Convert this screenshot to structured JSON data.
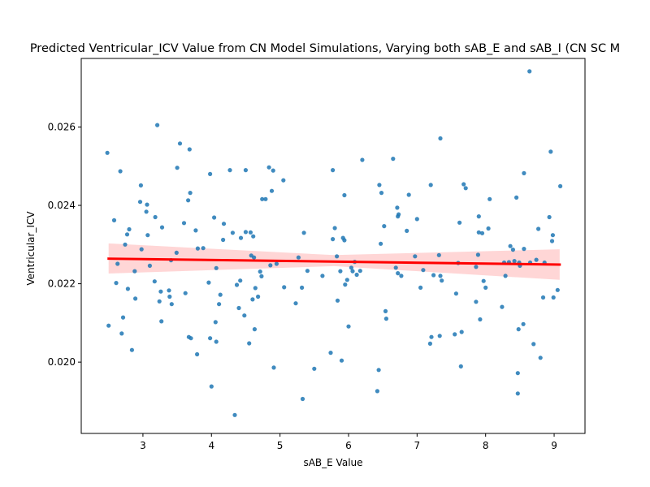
{
  "chart_data": {
    "type": "scatter",
    "title": "Predicted Ventricular_ICV Value from CN Model Simulations, Varying both sAB_E and sAB_I (CN SC M",
    "xlabel": "sAB_E Value",
    "ylabel": "Ventricular_ICV",
    "xlim": [
      2.1,
      9.45
    ],
    "ylim": [
      0.01818,
      0.02775
    ],
    "x_ticks": [
      3,
      4,
      5,
      6,
      7,
      8,
      9
    ],
    "x_tick_labels": [
      "3",
      "4",
      "5",
      "6",
      "7",
      "8",
      "9"
    ],
    "y_ticks": [
      0.02,
      0.022,
      0.024,
      0.026
    ],
    "y_tick_labels": [
      "0.020",
      "0.022",
      "0.024",
      "0.026"
    ],
    "grid": false,
    "legend": "none",
    "colors": {
      "points": "#1f77b4",
      "regression_line": "#ff0000",
      "confidence_band": "#ffcccc"
    },
    "regression": {
      "x": [
        2.5,
        9.08
      ],
      "y": [
        0.02264,
        0.02249
      ],
      "ci_lower": [
        0.02226,
        0.0221
      ],
      "ci_upper": [
        0.02303,
        0.02288
      ],
      "ci_mid_lower": 0.02245,
      "ci_mid_upper": 0.02273
    },
    "points": [
      [
        2.48,
        0.02534
      ],
      [
        2.5,
        0.02093
      ],
      [
        2.58,
        0.02362
      ],
      [
        2.61,
        0.02202
      ],
      [
        2.63,
        0.02251
      ],
      [
        2.67,
        0.02487
      ],
      [
        2.69,
        0.02073
      ],
      [
        2.71,
        0.02114
      ],
      [
        2.74,
        0.023
      ],
      [
        2.77,
        0.02326
      ],
      [
        2.78,
        0.02187
      ],
      [
        2.8,
        0.02339
      ],
      [
        2.84,
        0.02031
      ],
      [
        2.88,
        0.02232
      ],
      [
        2.89,
        0.02162
      ],
      [
        2.96,
        0.02409
      ],
      [
        2.97,
        0.02451
      ],
      [
        2.98,
        0.02288
      ],
      [
        3.05,
        0.02384
      ],
      [
        3.06,
        0.02402
      ],
      [
        3.07,
        0.02324
      ],
      [
        3.1,
        0.02246
      ],
      [
        3.17,
        0.02206
      ],
      [
        3.18,
        0.0237
      ],
      [
        3.21,
        0.02605
      ],
      [
        3.24,
        0.02155
      ],
      [
        3.26,
        0.0218
      ],
      [
        3.27,
        0.02104
      ],
      [
        3.28,
        0.02344
      ],
      [
        3.38,
        0.02183
      ],
      [
        3.39,
        0.02167
      ],
      [
        3.41,
        0.0226
      ],
      [
        3.42,
        0.02148
      ],
      [
        3.49,
        0.02279
      ],
      [
        3.5,
        0.02496
      ],
      [
        3.54,
        0.02558
      ],
      [
        3.6,
        0.02355
      ],
      [
        3.62,
        0.02176
      ],
      [
        3.66,
        0.02413
      ],
      [
        3.67,
        0.02064
      ],
      [
        3.68,
        0.02543
      ],
      [
        3.69,
        0.02432
      ],
      [
        3.7,
        0.02061
      ],
      [
        3.77,
        0.02336
      ],
      [
        3.79,
        0.0202
      ],
      [
        3.8,
        0.0229
      ],
      [
        3.88,
        0.02291
      ],
      [
        3.96,
        0.02203
      ],
      [
        3.98,
        0.0248
      ],
      [
        3.98,
        0.02061
      ],
      [
        4.0,
        0.01938
      ],
      [
        4.04,
        0.02369
      ],
      [
        4.06,
        0.02102
      ],
      [
        4.07,
        0.0224
      ],
      [
        4.07,
        0.02052
      ],
      [
        4.11,
        0.02148
      ],
      [
        4.13,
        0.02172
      ],
      [
        4.17,
        0.02312
      ],
      [
        4.18,
        0.02353
      ],
      [
        4.27,
        0.0249
      ],
      [
        4.31,
        0.0233
      ],
      [
        4.34,
        0.01865
      ],
      [
        4.37,
        0.02197
      ],
      [
        4.4,
        0.02138
      ],
      [
        4.42,
        0.02208
      ],
      [
        4.43,
        0.02317
      ],
      [
        4.48,
        0.02119
      ],
      [
        4.5,
        0.02332
      ],
      [
        4.5,
        0.0249
      ],
      [
        4.55,
        0.02048
      ],
      [
        4.57,
        0.02331
      ],
      [
        4.58,
        0.02272
      ],
      [
        4.6,
        0.0216
      ],
      [
        4.61,
        0.02321
      ],
      [
        4.62,
        0.02267
      ],
      [
        4.63,
        0.02084
      ],
      [
        4.64,
        0.02189
      ],
      [
        4.68,
        0.02167
      ],
      [
        4.71,
        0.02231
      ],
      [
        4.73,
        0.02219
      ],
      [
        4.74,
        0.02416
      ],
      [
        4.79,
        0.02416
      ],
      [
        4.84,
        0.02497
      ],
      [
        4.86,
        0.02247
      ],
      [
        4.88,
        0.02437
      ],
      [
        4.9,
        0.02489
      ],
      [
        4.91,
        0.01986
      ],
      [
        4.95,
        0.02251
      ],
      [
        5.05,
        0.02464
      ],
      [
        5.06,
        0.02191
      ],
      [
        5.23,
        0.0215
      ],
      [
        5.27,
        0.02267
      ],
      [
        5.32,
        0.0219
      ],
      [
        5.33,
        0.01906
      ],
      [
        5.35,
        0.0233
      ],
      [
        5.4,
        0.02233
      ],
      [
        5.5,
        0.01983
      ],
      [
        5.62,
        0.0222
      ],
      [
        5.74,
        0.02024
      ],
      [
        5.77,
        0.02314
      ],
      [
        5.77,
        0.0249
      ],
      [
        5.8,
        0.02342
      ],
      [
        5.83,
        0.0227
      ],
      [
        5.84,
        0.02157
      ],
      [
        5.88,
        0.02232
      ],
      [
        5.9,
        0.02004
      ],
      [
        5.92,
        0.02317
      ],
      [
        5.94,
        0.02426
      ],
      [
        5.94,
        0.02311
      ],
      [
        5.95,
        0.02198
      ],
      [
        5.98,
        0.0221
      ],
      [
        6.0,
        0.02091
      ],
      [
        6.04,
        0.02241
      ],
      [
        6.06,
        0.02232
      ],
      [
        6.09,
        0.02256
      ],
      [
        6.12,
        0.02223
      ],
      [
        6.17,
        0.02233
      ],
      [
        6.2,
        0.02516
      ],
      [
        6.42,
        0.01926
      ],
      [
        6.44,
        0.0198
      ],
      [
        6.45,
        0.02452
      ],
      [
        6.47,
        0.02302
      ],
      [
        6.48,
        0.02432
      ],
      [
        6.52,
        0.02347
      ],
      [
        6.54,
        0.0213
      ],
      [
        6.55,
        0.02111
      ],
      [
        6.65,
        0.02519
      ],
      [
        6.69,
        0.02241
      ],
      [
        6.71,
        0.02394
      ],
      [
        6.72,
        0.02372
      ],
      [
        6.72,
        0.02227
      ],
      [
        6.73,
        0.02377
      ],
      [
        6.77,
        0.0222
      ],
      [
        6.85,
        0.02335
      ],
      [
        6.88,
        0.02427
      ],
      [
        6.97,
        0.0227
      ],
      [
        7.0,
        0.02365
      ],
      [
        7.05,
        0.0219
      ],
      [
        7.09,
        0.02235
      ],
      [
        7.19,
        0.02047
      ],
      [
        7.2,
        0.02452
      ],
      [
        7.21,
        0.02064
      ],
      [
        7.24,
        0.02222
      ],
      [
        7.32,
        0.02273
      ],
      [
        7.33,
        0.02067
      ],
      [
        7.34,
        0.02571
      ],
      [
        7.34,
        0.0222
      ],
      [
        7.36,
        0.02208
      ],
      [
        7.55,
        0.02071
      ],
      [
        7.57,
        0.02175
      ],
      [
        7.6,
        0.02253
      ],
      [
        7.62,
        0.02356
      ],
      [
        7.64,
        0.01989
      ],
      [
        7.65,
        0.02077
      ],
      [
        7.68,
        0.02454
      ],
      [
        7.71,
        0.02444
      ],
      [
        7.86,
        0.02243
      ],
      [
        7.86,
        0.02154
      ],
      [
        7.89,
        0.02274
      ],
      [
        7.9,
        0.02372
      ],
      [
        7.9,
        0.02331
      ],
      [
        7.92,
        0.02109
      ],
      [
        7.95,
        0.02329
      ],
      [
        7.97,
        0.02207
      ],
      [
        8.0,
        0.0219
      ],
      [
        8.04,
        0.02341
      ],
      [
        8.06,
        0.02416
      ],
      [
        8.24,
        0.02141
      ],
      [
        8.27,
        0.02254
      ],
      [
        8.29,
        0.0222
      ],
      [
        8.34,
        0.02255
      ],
      [
        8.36,
        0.02296
      ],
      [
        8.4,
        0.02287
      ],
      [
        8.42,
        0.02258
      ],
      [
        8.45,
        0.0242
      ],
      [
        8.47,
        0.01972
      ],
      [
        8.47,
        0.0192
      ],
      [
        8.48,
        0.02084
      ],
      [
        8.49,
        0.02254
      ],
      [
        8.5,
        0.02246
      ],
      [
        8.55,
        0.02097
      ],
      [
        8.56,
        0.02482
      ],
      [
        8.56,
        0.02289
      ],
      [
        8.64,
        0.02742
      ],
      [
        8.65,
        0.02254
      ],
      [
        8.7,
        0.02046
      ],
      [
        8.74,
        0.02261
      ],
      [
        8.77,
        0.0234
      ],
      [
        8.8,
        0.02011
      ],
      [
        8.84,
        0.02165
      ],
      [
        8.86,
        0.02254
      ],
      [
        8.93,
        0.0237
      ],
      [
        8.95,
        0.02537
      ],
      [
        8.97,
        0.02309
      ],
      [
        8.98,
        0.02324
      ],
      [
        8.99,
        0.02165
      ],
      [
        9.05,
        0.02184
      ],
      [
        9.09,
        0.02449
      ]
    ]
  }
}
